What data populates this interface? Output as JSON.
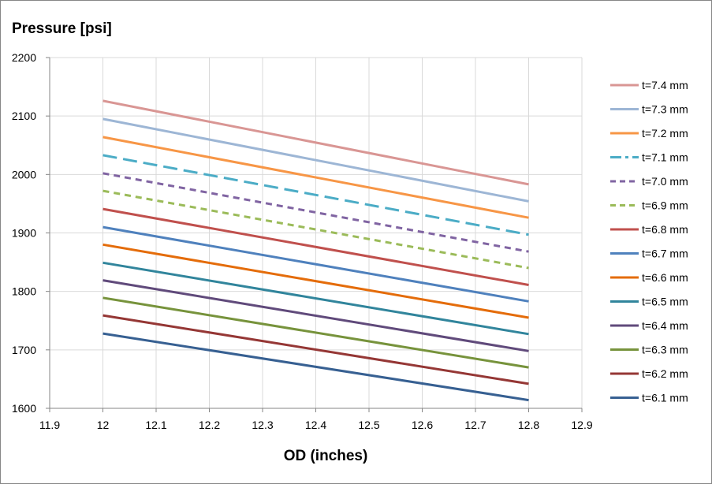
{
  "chart_data": {
    "type": "line",
    "ylabel": "Pressure [psi]",
    "xlabel": "OD (inches)",
    "xlim": [
      11.9,
      12.9
    ],
    "ylim": [
      1600,
      2200
    ],
    "xticks": [
      "11.9",
      "12",
      "12.1",
      "12.2",
      "12.3",
      "12.4",
      "12.5",
      "12.6",
      "12.7",
      "12.8",
      "12.9"
    ],
    "yticks": [
      "1600",
      "1700",
      "1800",
      "1900",
      "2000",
      "2100",
      "2200"
    ],
    "grid": true,
    "legend_position": "right",
    "x": [
      12.0,
      12.8
    ],
    "series": [
      {
        "name": "t=7.4 mm",
        "color": "#D99694",
        "dash": "solid",
        "values": [
          2126,
          1983
        ]
      },
      {
        "name": "t=7.3 mm",
        "color": "#9DB6D5",
        "dash": "solid",
        "values": [
          2095,
          1954
        ]
      },
      {
        "name": "t=7.2 mm",
        "color": "#F79646",
        "dash": "solid",
        "values": [
          2064,
          1926
        ]
      },
      {
        "name": "t=7.1 mm",
        "color": "#4BACC6",
        "dash": "long-dash",
        "values": [
          2033,
          1897
        ]
      },
      {
        "name": "t=7.0 mm",
        "color": "#8064A2",
        "dash": "dash",
        "values": [
          2002,
          1868
        ]
      },
      {
        "name": "t=6.9 mm",
        "color": "#9BBB59",
        "dash": "dash",
        "values": [
          1972,
          1840
        ]
      },
      {
        "name": "t=6.8 mm",
        "color": "#C0504D",
        "dash": "solid",
        "values": [
          1941,
          1811
        ]
      },
      {
        "name": "t=6.7 mm",
        "color": "#4F81BD",
        "dash": "solid",
        "values": [
          1910,
          1783
        ]
      },
      {
        "name": "t=6.6 mm",
        "color": "#E46C0A",
        "dash": "solid",
        "values": [
          1880,
          1755
        ]
      },
      {
        "name": "t=6.5 mm",
        "color": "#31859C",
        "dash": "solid",
        "values": [
          1849,
          1727
        ]
      },
      {
        "name": "t=6.4 mm",
        "color": "#604A7B",
        "dash": "solid",
        "values": [
          1819,
          1698
        ]
      },
      {
        "name": "t=6.3 mm",
        "color": "#77933C",
        "dash": "solid",
        "values": [
          1789,
          1670
        ]
      },
      {
        "name": "t=6.2 mm",
        "color": "#953735",
        "dash": "solid",
        "values": [
          1759,
          1642
        ]
      },
      {
        "name": "t=6.1 mm",
        "color": "#376092",
        "dash": "solid",
        "values": [
          1728,
          1614
        ]
      }
    ]
  }
}
